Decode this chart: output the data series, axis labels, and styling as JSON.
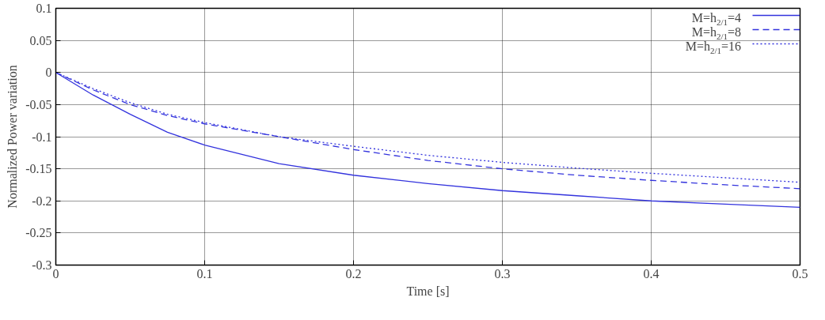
{
  "chart_data": {
    "type": "line",
    "xlabel": "Time [s]",
    "ylabel": "Normalized Power variation",
    "x": [
      0,
      0.025,
      0.05,
      0.075,
      0.1,
      0.15,
      0.2,
      0.25,
      0.3,
      0.35,
      0.4,
      0.45,
      0.5
    ],
    "series": [
      {
        "name": "M=h$_{2/1}$=4",
        "color": "#3333dd",
        "line_style": "solid",
        "values": [
          0,
          -0.035,
          -0.065,
          -0.093,
          -0.113,
          -0.142,
          -0.16,
          -0.173,
          -0.184,
          -0.192,
          -0.2,
          -0.205,
          -0.21
        ]
      },
      {
        "name": "M=h$_{2/1}$=8",
        "color": "#3333dd",
        "line_style": "dashed",
        "values": [
          0,
          -0.027,
          -0.05,
          -0.067,
          -0.08,
          -0.1,
          -0.12,
          -0.137,
          -0.15,
          -0.16,
          -0.168,
          -0.175,
          -0.181
        ]
      },
      {
        "name": "M=h$_{2/1}$=16",
        "color": "#3333dd",
        "line_style": "dotted",
        "values": [
          0,
          -0.025,
          -0.047,
          -0.065,
          -0.078,
          -0.1,
          -0.115,
          -0.129,
          -0.14,
          -0.149,
          -0.157,
          -0.164,
          -0.171
        ]
      }
    ],
    "xlim": [
      0,
      0.5
    ],
    "ylim": [
      -0.3,
      0.1
    ],
    "xticks": [
      0,
      0.1,
      0.2,
      0.3,
      0.4,
      0.5
    ],
    "yticks": [
      -0.3,
      -0.25,
      -0.2,
      -0.15,
      -0.1,
      -0.05,
      0,
      0.05,
      0.1
    ],
    "grid": true,
    "legend": "top right"
  }
}
